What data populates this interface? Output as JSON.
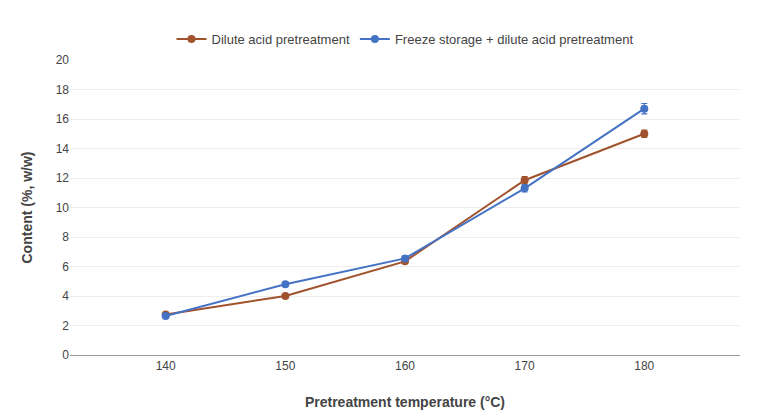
{
  "chart_data": {
    "type": "line",
    "x": [
      140,
      150,
      160,
      170,
      180
    ],
    "series": [
      {
        "name": "Dilute acid pretreatment",
        "color": "#A0522D",
        "marker": "circle",
        "values": [
          2.75,
          4.0,
          6.35,
          11.85,
          15.0
        ],
        "error": [
          0.0,
          0.0,
          0.0,
          0.25,
          0.25
        ]
      },
      {
        "name": "Freeze storage + dilute acid pretreatment",
        "color": "#4472C4",
        "marker": "circle",
        "values": [
          2.65,
          4.8,
          6.55,
          11.3,
          16.7
        ],
        "error": [
          0.0,
          0.0,
          0.0,
          0.25,
          0.35
        ]
      }
    ],
    "x_label": "Pretreatment temperature (°C)",
    "y_label": "Content (%, w/w)",
    "xlim": [
      132,
      188
    ],
    "xticks": [
      140,
      150,
      160,
      170,
      180
    ],
    "ylim": [
      0,
      20
    ],
    "yticks": [
      0,
      2,
      4,
      6,
      8,
      10,
      12,
      14,
      16,
      18,
      20
    ],
    "grid": "y",
    "legend": "top"
  }
}
